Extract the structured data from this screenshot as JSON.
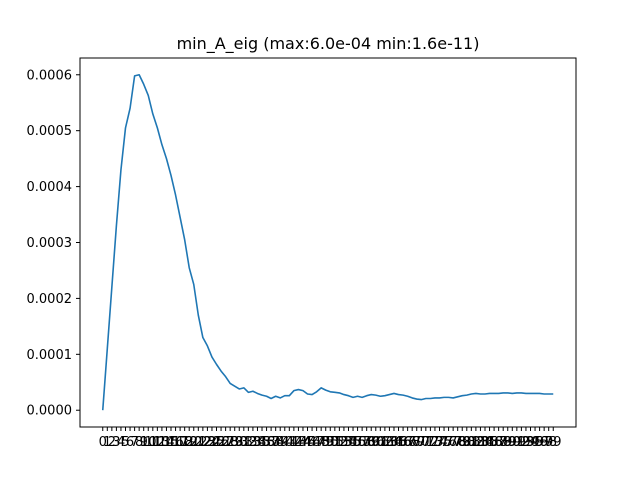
{
  "chart_data": {
    "type": "line",
    "title": "min_A_eig (max:6.0e-04 min:1.6e-11)",
    "xlabel": "",
    "ylabel": "",
    "xlim": [
      -5,
      104
    ],
    "ylim": [
      -3e-05,
      0.00063
    ],
    "grid": false,
    "line_color": "#1f77b4",
    "y_ticks": [
      "0.0000",
      "0.0001",
      "0.0002",
      "0.0003",
      "0.0004",
      "0.0005",
      "0.0006"
    ],
    "y_tick_values": [
      0,
      0.0001,
      0.0002,
      0.0003,
      0.0004,
      0.0005,
      0.0006
    ],
    "x_tick_labels": [
      "0",
      "1",
      "2",
      "3",
      "4",
      "5",
      "6",
      "7",
      "8",
      "9",
      "10",
      "11",
      "12",
      "13",
      "14",
      "15",
      "16",
      "17",
      "18",
      "19",
      "20",
      "21",
      "22",
      "23",
      "24",
      "25",
      "26",
      "27",
      "28",
      "29",
      "30",
      "31",
      "32",
      "33",
      "34",
      "35",
      "36",
      "37",
      "38",
      "39",
      "40",
      "41",
      "42",
      "43",
      "44",
      "45",
      "46",
      "47",
      "48",
      "49",
      "50",
      "51",
      "52",
      "53",
      "54",
      "55",
      "56",
      "57",
      "58",
      "59",
      "60",
      "61",
      "62",
      "63",
      "64",
      "65",
      "66",
      "67",
      "68",
      "69",
      "70",
      "71",
      "72",
      "73",
      "74",
      "75",
      "76",
      "77",
      "78",
      "79",
      "80",
      "81",
      "82",
      "83",
      "84",
      "85",
      "86",
      "87",
      "88",
      "89",
      "90",
      "91",
      "92",
      "93",
      "94",
      "95",
      "96",
      "97",
      "98",
      "99"
    ],
    "series": [
      {
        "x": [
          0,
          1,
          2,
          3,
          4,
          5,
          6,
          7,
          8,
          9,
          10,
          11,
          12,
          13,
          14,
          15,
          16,
          17,
          18,
          19,
          20,
          21,
          22,
          23,
          24,
          25,
          26,
          27,
          28,
          29,
          30,
          31,
          32,
          33,
          34,
          35,
          36,
          37,
          38,
          39,
          40,
          41,
          42,
          43,
          44,
          45,
          46,
          47,
          48,
          49,
          50,
          51,
          52,
          53,
          54,
          55,
          56,
          57,
          58,
          59,
          60,
          61,
          62,
          63,
          64,
          65,
          66,
          67,
          68,
          69,
          70,
          71,
          72,
          73,
          74,
          75,
          76,
          77,
          78,
          79,
          80,
          81,
          82,
          83,
          84,
          85,
          86,
          87,
          88,
          89,
          90,
          91,
          92,
          93,
          94,
          95,
          96,
          97,
          98,
          99
        ],
        "values": [
          1.6e-11,
          0.00011,
          0.00022,
          0.00033,
          0.00043,
          0.000505,
          0.00054,
          0.000598,
          0.0006,
          0.000583,
          0.000563,
          0.00053,
          0.000505,
          0.000475,
          0.00045,
          0.00042,
          0.000385,
          0.000345,
          0.000305,
          0.000255,
          0.000225,
          0.00017,
          0.00013,
          0.000115,
          9.5e-05,
          8.2e-05,
          7e-05,
          6e-05,
          4.8e-05,
          4.3e-05,
          3.8e-05,
          4e-05,
          3.2e-05,
          3.4e-05,
          3e-05,
          2.7e-05,
          2.5e-05,
          2.1e-05,
          2.5e-05,
          2.2e-05,
          2.6e-05,
          2.6e-05,
          3.5e-05,
          3.7e-05,
          3.5e-05,
          2.9e-05,
          2.8e-05,
          3.3e-05,
          4e-05,
          3.6e-05,
          3.3e-05,
          3.2e-05,
          3.1e-05,
          2.8e-05,
          2.6e-05,
          2.3e-05,
          2.5e-05,
          2.3e-05,
          2.6e-05,
          2.8e-05,
          2.7e-05,
          2.5e-05,
          2.6e-05,
          2.8e-05,
          3e-05,
          2.8e-05,
          2.7e-05,
          2.5e-05,
          2.2e-05,
          2e-05,
          1.9e-05,
          2.1e-05,
          2.1e-05,
          2.2e-05,
          2.2e-05,
          2.3e-05,
          2.3e-05,
          2.2e-05,
          2.4e-05,
          2.6e-05,
          2.7e-05,
          2.9e-05,
          3e-05,
          2.9e-05,
          2.9e-05,
          3e-05,
          3e-05,
          3e-05,
          3.1e-05,
          3.1e-05,
          3e-05,
          3.1e-05,
          3.1e-05,
          3e-05,
          3e-05,
          3e-05,
          3e-05,
          2.9e-05,
          2.9e-05,
          2.9e-05
        ]
      }
    ]
  }
}
